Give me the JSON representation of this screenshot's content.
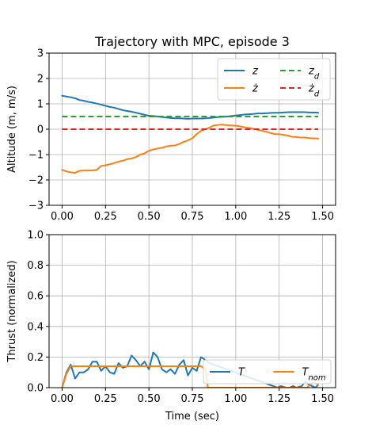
{
  "chart_data": [
    {
      "type": "line",
      "title": "Trajectory with MPC, episode 3",
      "xlabel": "",
      "ylabel": "Altitude (m, m/s)",
      "xlim": [
        -0.075,
        1.575
      ],
      "ylim": [
        -3,
        3
      ],
      "xticks": [
        "0.00",
        "0.25",
        "0.50",
        "0.75",
        "1.00",
        "1.25",
        "1.50"
      ],
      "xtick_values": [
        0,
        0.25,
        0.5,
        0.75,
        1.0,
        1.25,
        1.5
      ],
      "yticks": [
        "−3",
        "−2",
        "−1",
        "0",
        "1",
        "2",
        "3"
      ],
      "ytick_values": [
        -3,
        -2,
        -1,
        0,
        1,
        2,
        3
      ],
      "grid": true,
      "legend_placement": "top-right",
      "legend_columns": 2,
      "series": [
        {
          "name": "z",
          "color": "#1f77b4",
          "style": "solid",
          "x": [
            0.0,
            0.025,
            0.05,
            0.075,
            0.1,
            0.125,
            0.15,
            0.175,
            0.2,
            0.225,
            0.25,
            0.275,
            0.3,
            0.325,
            0.35,
            0.375,
            0.4,
            0.425,
            0.45,
            0.475,
            0.5,
            0.525,
            0.55,
            0.575,
            0.6,
            0.625,
            0.65,
            0.675,
            0.7,
            0.725,
            0.75,
            0.775,
            0.8,
            0.825,
            0.85,
            0.875,
            0.9,
            0.925,
            0.95,
            0.975,
            1.0,
            1.025,
            1.05,
            1.075,
            1.1,
            1.125,
            1.15,
            1.175,
            1.2,
            1.225,
            1.25,
            1.275,
            1.3,
            1.325,
            1.35,
            1.375,
            1.4,
            1.425,
            1.45,
            1.475
          ],
          "y": [
            1.32,
            1.29,
            1.26,
            1.22,
            1.15,
            1.12,
            1.08,
            1.05,
            1.01,
            0.97,
            0.92,
            0.88,
            0.85,
            0.8,
            0.75,
            0.72,
            0.69,
            0.65,
            0.61,
            0.57,
            0.53,
            0.52,
            0.5,
            0.48,
            0.46,
            0.44,
            0.43,
            0.43,
            0.42,
            0.41,
            0.42,
            0.42,
            0.42,
            0.43,
            0.44,
            0.46,
            0.48,
            0.49,
            0.5,
            0.52,
            0.54,
            0.56,
            0.58,
            0.59,
            0.6,
            0.62,
            0.62,
            0.63,
            0.64,
            0.65,
            0.65,
            0.66,
            0.67,
            0.67,
            0.67,
            0.67,
            0.67,
            0.66,
            0.66,
            0.65
          ]
        },
        {
          "name": "ż",
          "color": "#ff7f0e",
          "style": "solid",
          "x": [
            0.0,
            0.025,
            0.05,
            0.075,
            0.1,
            0.125,
            0.15,
            0.175,
            0.2,
            0.225,
            0.25,
            0.275,
            0.3,
            0.325,
            0.35,
            0.375,
            0.4,
            0.425,
            0.45,
            0.475,
            0.5,
            0.525,
            0.55,
            0.575,
            0.6,
            0.625,
            0.65,
            0.675,
            0.7,
            0.725,
            0.75,
            0.775,
            0.8,
            0.825,
            0.85,
            0.875,
            0.9,
            0.925,
            0.95,
            0.975,
            1.0,
            1.025,
            1.05,
            1.075,
            1.1,
            1.125,
            1.15,
            1.175,
            1.2,
            1.225,
            1.25,
            1.275,
            1.3,
            1.325,
            1.35,
            1.375,
            1.4,
            1.425,
            1.45,
            1.475
          ],
          "y": [
            -1.6,
            -1.66,
            -1.7,
            -1.72,
            -1.64,
            -1.63,
            -1.63,
            -1.62,
            -1.6,
            -1.45,
            -1.42,
            -1.38,
            -1.33,
            -1.28,
            -1.24,
            -1.18,
            -1.15,
            -1.1,
            -1.0,
            -0.95,
            -0.85,
            -0.8,
            -0.76,
            -0.73,
            -0.68,
            -0.65,
            -0.64,
            -0.58,
            -0.5,
            -0.44,
            -0.36,
            -0.19,
            -0.07,
            0.0,
            0.07,
            0.15,
            0.17,
            0.18,
            0.16,
            0.15,
            0.14,
            0.11,
            0.08,
            0.05,
            0.02,
            -0.02,
            -0.06,
            -0.1,
            -0.15,
            -0.19,
            -0.2,
            -0.22,
            -0.25,
            -0.3,
            -0.31,
            -0.33,
            -0.33,
            -0.35,
            -0.36,
            -0.37
          ]
        },
        {
          "name": "z_d",
          "color": "#2ca02c",
          "style": "dashed",
          "x": [
            0.0,
            1.475
          ],
          "y": [
            0.5,
            0.5
          ]
        },
        {
          "name": "ż_d",
          "color": "#d62728",
          "style": "dashed",
          "x": [
            0.0,
            1.475
          ],
          "y": [
            0.0,
            0.0
          ]
        }
      ]
    },
    {
      "type": "line",
      "title": "",
      "xlabel": "Time (sec)",
      "ylabel": "Thrust (normalized)",
      "xlim": [
        -0.075,
        1.575
      ],
      "ylim": [
        0,
        1
      ],
      "xticks": [
        "0.00",
        "0.25",
        "0.50",
        "0.75",
        "1.00",
        "1.25",
        "1.50"
      ],
      "xtick_values": [
        0,
        0.25,
        0.5,
        0.75,
        1.0,
        1.25,
        1.5
      ],
      "yticks": [
        "0.0",
        "0.2",
        "0.4",
        "0.6",
        "0.8",
        "1.0"
      ],
      "ytick_values": [
        0,
        0.2,
        0.4,
        0.6,
        0.8,
        1.0
      ],
      "grid": true,
      "legend_placement": "lower-right",
      "legend_columns": 2,
      "series": [
        {
          "name": "T",
          "color": "#1f77b4",
          "style": "solid",
          "x": [
            0.0,
            0.025,
            0.05,
            0.075,
            0.1,
            0.125,
            0.15,
            0.175,
            0.2,
            0.225,
            0.25,
            0.275,
            0.3,
            0.325,
            0.35,
            0.375,
            0.4,
            0.425,
            0.45,
            0.475,
            0.5,
            0.525,
            0.55,
            0.575,
            0.6,
            0.625,
            0.65,
            0.675,
            0.7,
            0.725,
            0.75,
            0.775,
            0.8,
            0.825,
            0.85,
            1.24,
            1.26,
            1.29,
            1.31,
            1.33,
            1.35,
            1.38,
            1.4,
            1.42,
            1.44,
            1.46,
            1.475
          ],
          "y": [
            0.0,
            0.1,
            0.15,
            0.06,
            0.1,
            0.1,
            0.12,
            0.17,
            0.17,
            0.11,
            0.14,
            0.1,
            0.09,
            0.16,
            0.13,
            0.14,
            0.21,
            0.18,
            0.14,
            0.17,
            0.12,
            0.23,
            0.2,
            0.12,
            0.1,
            0.12,
            0.09,
            0.15,
            0.18,
            0.08,
            0.13,
            0.11,
            0.2,
            0.18,
            0.16,
            0.0,
            0.01,
            0.0,
            0.0,
            0.01,
            0.0,
            0.01,
            0.04,
            0.02,
            0.01,
            0.0,
            0.02
          ]
        },
        {
          "name": "T_nom",
          "color": "#ff7f0e",
          "style": "solid",
          "x": [
            0.0,
            0.025,
            0.05,
            0.075,
            0.8,
            0.825,
            0.84,
            1.41,
            1.44,
            1.46,
            1.475
          ],
          "y": [
            0.0,
            0.09,
            0.14,
            0.14,
            0.14,
            0.12,
            0.0,
            0.0,
            0.03,
            0.03,
            0.02
          ]
        }
      ]
    }
  ]
}
